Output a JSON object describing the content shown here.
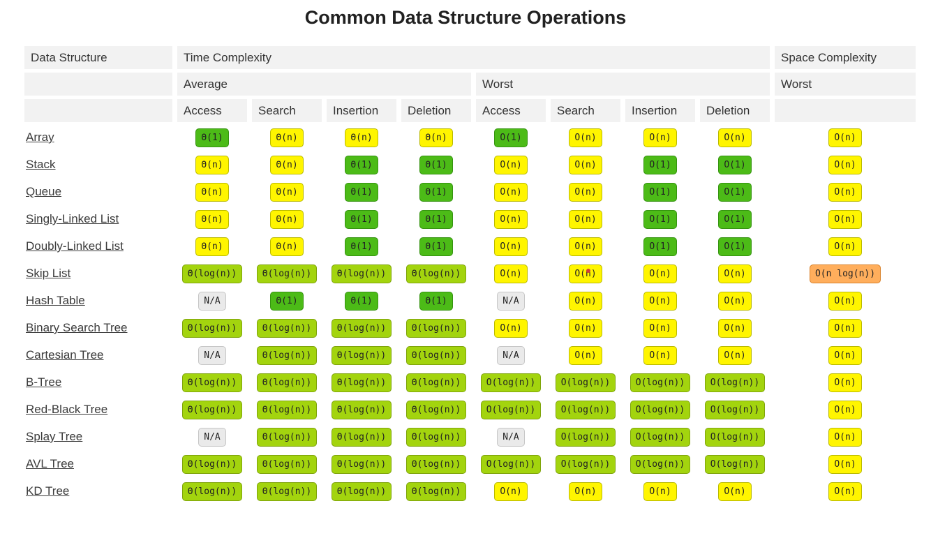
{
  "title": "Common Data Structure Operations",
  "colors": {
    "green_bg": "#4cbb17",
    "green_border": "#359310",
    "yellow_bg": "#fff500",
    "yellow_border": "#b9b900",
    "yellowgreen_bg": "#a3d40e",
    "yellowgreen_border": "#7fa40b",
    "orange_bg": "#ffae5c",
    "orange_border": "#d9822b",
    "na_bg": "#eaeaea",
    "na_border": "#c6c6c6",
    "header_bg": "#f2f2f2",
    "link": "#3b3b3b",
    "pill_text": "#222222",
    "red_dot": "#d43a3a"
  },
  "table": {
    "headers": {
      "data_structure": "Data Structure",
      "time_complexity": "Time Complexity",
      "space_complexity": "Space Complexity",
      "average": "Average",
      "worst": "Worst",
      "space_worst": "Worst",
      "ops": [
        "Access",
        "Search",
        "Insertion",
        "Deletion",
        "Access",
        "Search",
        "Insertion",
        "Deletion"
      ]
    },
    "cell_keys": [
      "avg-access",
      "avg-search",
      "avg-insertion",
      "avg-deletion",
      "worst-access",
      "worst-search",
      "worst-insertion",
      "worst-deletion",
      "space-worst"
    ],
    "rows": [
      {
        "name": "Array",
        "cells": [
          [
            "Θ(1)",
            "green"
          ],
          [
            "Θ(n)",
            "yellow"
          ],
          [
            "Θ(n)",
            "yellow"
          ],
          [
            "Θ(n)",
            "yellow"
          ],
          [
            "O(1)",
            "green"
          ],
          [
            "O(n)",
            "yellow"
          ],
          [
            "O(n)",
            "yellow"
          ],
          [
            "O(n)",
            "yellow"
          ],
          [
            "O(n)",
            "yellow"
          ]
        ]
      },
      {
        "name": "Stack",
        "cells": [
          [
            "Θ(n)",
            "yellow"
          ],
          [
            "Θ(n)",
            "yellow"
          ],
          [
            "Θ(1)",
            "green"
          ],
          [
            "Θ(1)",
            "green"
          ],
          [
            "O(n)",
            "yellow"
          ],
          [
            "O(n)",
            "yellow"
          ],
          [
            "O(1)",
            "green"
          ],
          [
            "O(1)",
            "green"
          ],
          [
            "O(n)",
            "yellow"
          ]
        ]
      },
      {
        "name": "Queue",
        "cells": [
          [
            "Θ(n)",
            "yellow"
          ],
          [
            "Θ(n)",
            "yellow"
          ],
          [
            "Θ(1)",
            "green"
          ],
          [
            "Θ(1)",
            "green"
          ],
          [
            "O(n)",
            "yellow"
          ],
          [
            "O(n)",
            "yellow"
          ],
          [
            "O(1)",
            "green"
          ],
          [
            "O(1)",
            "green"
          ],
          [
            "O(n)",
            "yellow"
          ]
        ]
      },
      {
        "name": "Singly-Linked List",
        "cells": [
          [
            "Θ(n)",
            "yellow"
          ],
          [
            "Θ(n)",
            "yellow"
          ],
          [
            "Θ(1)",
            "green"
          ],
          [
            "Θ(1)",
            "green"
          ],
          [
            "O(n)",
            "yellow"
          ],
          [
            "O(n)",
            "yellow"
          ],
          [
            "O(1)",
            "green"
          ],
          [
            "O(1)",
            "green"
          ],
          [
            "O(n)",
            "yellow"
          ]
        ]
      },
      {
        "name": "Doubly-Linked List",
        "cells": [
          [
            "Θ(n)",
            "yellow"
          ],
          [
            "Θ(n)",
            "yellow"
          ],
          [
            "Θ(1)",
            "green"
          ],
          [
            "Θ(1)",
            "green"
          ],
          [
            "O(n)",
            "yellow"
          ],
          [
            "O(n)",
            "yellow"
          ],
          [
            "O(1)",
            "green"
          ],
          [
            "O(1)",
            "green"
          ],
          [
            "O(n)",
            "yellow"
          ]
        ]
      },
      {
        "name": "Skip List",
        "cells": [
          [
            "Θ(log(n))",
            "yellowgreen"
          ],
          [
            "Θ(log(n))",
            "yellowgreen"
          ],
          [
            "Θ(log(n))",
            "yellowgreen"
          ],
          [
            "Θ(log(n))",
            "yellowgreen"
          ],
          [
            "O(n)",
            "yellow"
          ],
          [
            "O(n)",
            "yellow"
          ],
          [
            "O(n)",
            "yellow"
          ],
          [
            "O(n)",
            "yellow"
          ],
          [
            "O(n log(n))",
            "orange"
          ]
        ]
      },
      {
        "name": "Hash Table",
        "cells": [
          [
            "N/A",
            "na"
          ],
          [
            "Θ(1)",
            "green"
          ],
          [
            "Θ(1)",
            "green"
          ],
          [
            "Θ(1)",
            "green"
          ],
          [
            "N/A",
            "na"
          ],
          [
            "O(n)",
            "yellow"
          ],
          [
            "O(n)",
            "yellow"
          ],
          [
            "O(n)",
            "yellow"
          ],
          [
            "O(n)",
            "yellow"
          ]
        ]
      },
      {
        "name": "Binary Search Tree",
        "cells": [
          [
            "Θ(log(n))",
            "yellowgreen"
          ],
          [
            "Θ(log(n))",
            "yellowgreen"
          ],
          [
            "Θ(log(n))",
            "yellowgreen"
          ],
          [
            "Θ(log(n))",
            "yellowgreen"
          ],
          [
            "O(n)",
            "yellow"
          ],
          [
            "O(n)",
            "yellow"
          ],
          [
            "O(n)",
            "yellow"
          ],
          [
            "O(n)",
            "yellow"
          ],
          [
            "O(n)",
            "yellow"
          ]
        ]
      },
      {
        "name": "Cartesian Tree",
        "cells": [
          [
            "N/A",
            "na"
          ],
          [
            "Θ(log(n))",
            "yellowgreen"
          ],
          [
            "Θ(log(n))",
            "yellowgreen"
          ],
          [
            "Θ(log(n))",
            "yellowgreen"
          ],
          [
            "N/A",
            "na"
          ],
          [
            "O(n)",
            "yellow"
          ],
          [
            "O(n)",
            "yellow"
          ],
          [
            "O(n)",
            "yellow"
          ],
          [
            "O(n)",
            "yellow"
          ]
        ]
      },
      {
        "name": "B-Tree",
        "cells": [
          [
            "Θ(log(n))",
            "yellowgreen"
          ],
          [
            "Θ(log(n))",
            "yellowgreen"
          ],
          [
            "Θ(log(n))",
            "yellowgreen"
          ],
          [
            "Θ(log(n))",
            "yellowgreen"
          ],
          [
            "O(log(n))",
            "yellowgreen"
          ],
          [
            "O(log(n))",
            "yellowgreen"
          ],
          [
            "O(log(n))",
            "yellowgreen"
          ],
          [
            "O(log(n))",
            "yellowgreen"
          ],
          [
            "O(n)",
            "yellow"
          ]
        ]
      },
      {
        "name": "Red-Black Tree",
        "cells": [
          [
            "Θ(log(n))",
            "yellowgreen"
          ],
          [
            "Θ(log(n))",
            "yellowgreen"
          ],
          [
            "Θ(log(n))",
            "yellowgreen"
          ],
          [
            "Θ(log(n))",
            "yellowgreen"
          ],
          [
            "O(log(n))",
            "yellowgreen"
          ],
          [
            "O(log(n))",
            "yellowgreen"
          ],
          [
            "O(log(n))",
            "yellowgreen"
          ],
          [
            "O(log(n))",
            "yellowgreen"
          ],
          [
            "O(n)",
            "yellow"
          ]
        ]
      },
      {
        "name": "Splay Tree",
        "cells": [
          [
            "N/A",
            "na"
          ],
          [
            "Θ(log(n))",
            "yellowgreen"
          ],
          [
            "Θ(log(n))",
            "yellowgreen"
          ],
          [
            "Θ(log(n))",
            "yellowgreen"
          ],
          [
            "N/A",
            "na"
          ],
          [
            "O(log(n))",
            "yellowgreen"
          ],
          [
            "O(log(n))",
            "yellowgreen"
          ],
          [
            "O(log(n))",
            "yellowgreen"
          ],
          [
            "O(n)",
            "yellow"
          ]
        ]
      },
      {
        "name": "AVL Tree",
        "cells": [
          [
            "Θ(log(n))",
            "yellowgreen"
          ],
          [
            "Θ(log(n))",
            "yellowgreen"
          ],
          [
            "Θ(log(n))",
            "yellowgreen"
          ],
          [
            "Θ(log(n))",
            "yellowgreen"
          ],
          [
            "O(log(n))",
            "yellowgreen"
          ],
          [
            "O(log(n))",
            "yellowgreen"
          ],
          [
            "O(log(n))",
            "yellowgreen"
          ],
          [
            "O(log(n))",
            "yellowgreen"
          ],
          [
            "O(n)",
            "yellow"
          ]
        ]
      },
      {
        "name": "KD Tree",
        "cells": [
          [
            "Θ(log(n))",
            "yellowgreen"
          ],
          [
            "Θ(log(n))",
            "yellowgreen"
          ],
          [
            "Θ(log(n))",
            "yellowgreen"
          ],
          [
            "Θ(log(n))",
            "yellowgreen"
          ],
          [
            "O(n)",
            "yellow"
          ],
          [
            "O(n)",
            "yellow"
          ],
          [
            "O(n)",
            "yellow"
          ],
          [
            "O(n)",
            "yellow"
          ],
          [
            "O(n)",
            "yellow"
          ]
        ]
      }
    ]
  }
}
